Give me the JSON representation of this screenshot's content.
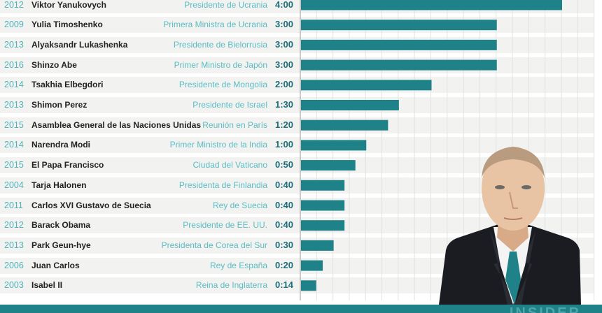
{
  "chart_data": {
    "type": "bar",
    "orientation": "horizontal",
    "unit": "minutes",
    "xlim": [
      0,
      270
    ],
    "grid_step": 15,
    "rows": [
      {
        "year": "2012",
        "name": "Viktor Yanukovych",
        "role": "Presidente de Ucrania",
        "label": "4:00",
        "value": 240
      },
      {
        "year": "2009",
        "name": "Yulia Timoshenko",
        "role": "Primera Ministra de Ucrania",
        "label": "3:00",
        "value": 180
      },
      {
        "year": "2013",
        "name": "Alyaksandr Lukashenka",
        "role": "Presidente de Bielorrusia",
        "label": "3:00",
        "value": 180
      },
      {
        "year": "2016",
        "name": "Shinzo Abe",
        "role": "Primer Ministro de Japón",
        "label": "3:00",
        "value": 180
      },
      {
        "year": "2014",
        "name": "Tsakhia Elbegdori",
        "role": "Presidente de Mongolia",
        "label": "2:00",
        "value": 120
      },
      {
        "year": "2013",
        "name": "Shimon Perez",
        "role": "Presidente de Israel",
        "label": "1:30",
        "value": 90
      },
      {
        "year": "2015",
        "name": "Asamblea General de las Naciones Unidas",
        "role": "Reunión en París",
        "label": "1:20",
        "value": 80
      },
      {
        "year": "2014",
        "name": "Narendra Modi",
        "role": "Primer Ministro de la India",
        "label": "1:00",
        "value": 60
      },
      {
        "year": "2015",
        "name": "El Papa Francisco",
        "role": "Ciudad del Vaticano",
        "label": "0:50",
        "value": 50
      },
      {
        "year": "2004",
        "name": "Tarja Halonen",
        "role": "Presidenta de Finlandia",
        "label": "0:40",
        "value": 40
      },
      {
        "year": "2011",
        "name": "Carlos XVI Gustavo de Suecia",
        "role": "Rey de Suecia",
        "label": "0:40",
        "value": 40
      },
      {
        "year": "2012",
        "name": "Barack Obama",
        "role": "Presidente de EE. UU.",
        "label": "0:40",
        "value": 40
      },
      {
        "year": "2013",
        "name": "Park Geun-hye",
        "role": "Presidenta de Corea del Sur",
        "label": "0:30",
        "value": 30
      },
      {
        "year": "2006",
        "name": "Juan Carlos",
        "role": "Rey de España",
        "label": "0:20",
        "value": 20
      },
      {
        "year": "2003",
        "name": "Isabel II",
        "role": "Reina de Inglaterra",
        "label": "0:14",
        "value": 14
      }
    ],
    "colors": {
      "bar": "#1e8288",
      "year": "#4fb3bb",
      "role": "#5bbcc4",
      "value": "#1b6e78"
    }
  },
  "footer": {
    "logo": "INSIDER"
  }
}
